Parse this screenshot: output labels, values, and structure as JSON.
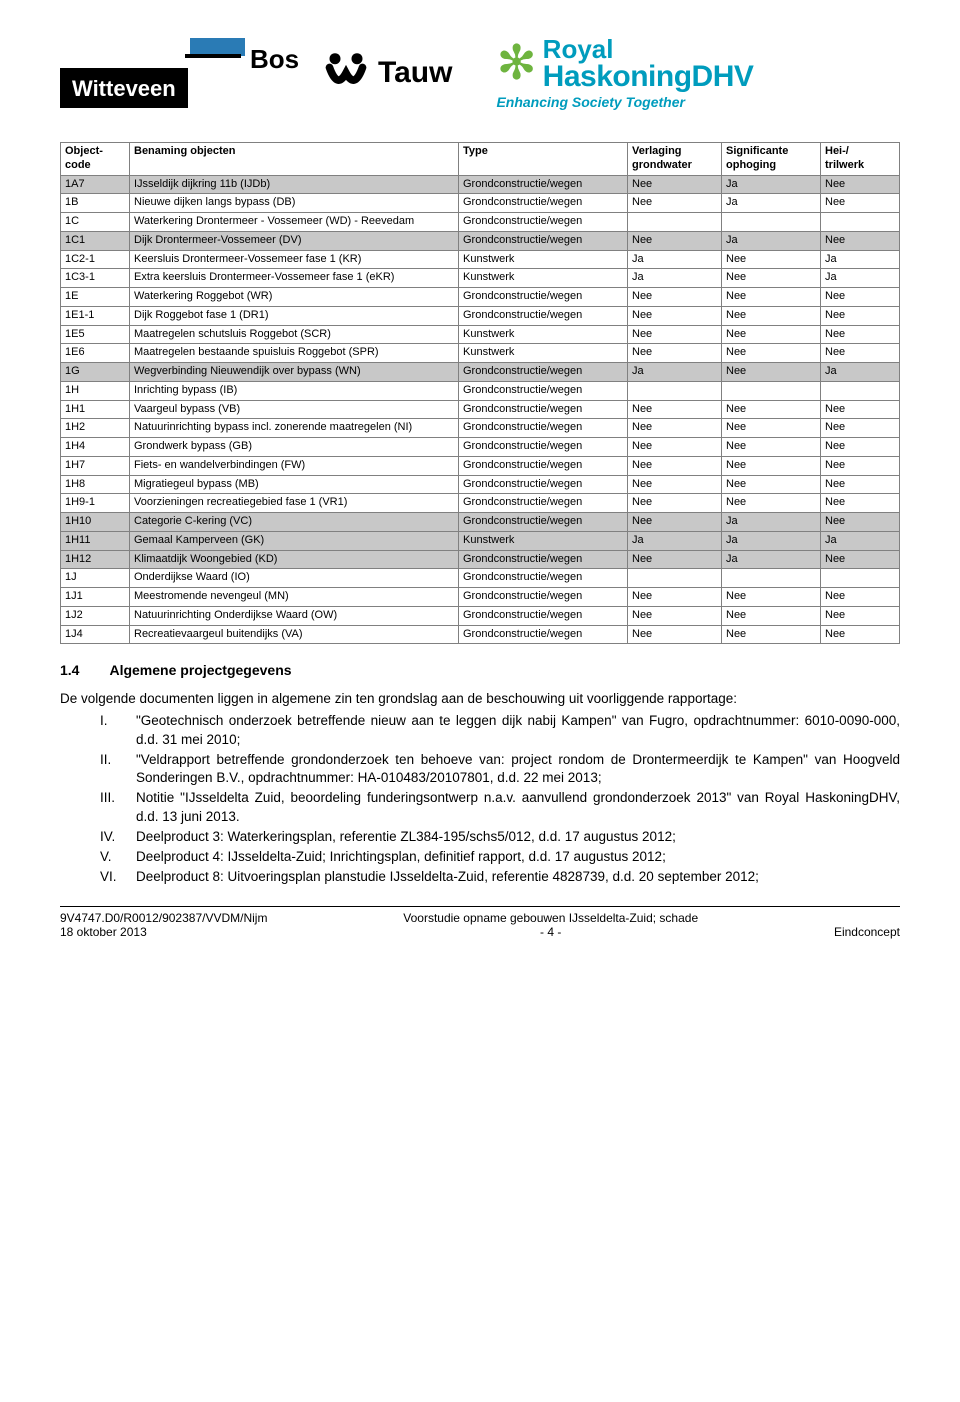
{
  "logos": {
    "wb_text1": "Witteveen",
    "wb_text2": "Bos",
    "tauw": "Tauw",
    "rh_royal": "Royal",
    "rh_hdhv": "HaskoningDHV",
    "rh_tag": "Enhancing Society Together"
  },
  "table": {
    "headers": {
      "c1a": "Object-",
      "c1b": "code",
      "c2": "Benaming objecten",
      "c3": "Type",
      "c4a": "Verlaging",
      "c4b": "grondwater",
      "c5a": "Significante",
      "c5b": "ophoging",
      "c6a": "Hei-/",
      "c6b": "trilwerk"
    },
    "rows": [
      {
        "shade": true,
        "c": "1A7",
        "n": "IJsseldijk dijkring 11b (IJDb)",
        "t": "Grondconstructie/wegen",
        "v": "Nee",
        "s": "Ja",
        "h": "Nee"
      },
      {
        "shade": false,
        "c": "1B",
        "n": "Nieuwe dijken langs bypass (DB)",
        "t": "Grondconstructie/wegen",
        "v": "Nee",
        "s": "Ja",
        "h": "Nee"
      },
      {
        "shade": false,
        "c": "1C",
        "n": "Waterkering Drontermeer - Vossemeer (WD) - Reevedam",
        "t": "Grondconstructie/wegen",
        "v": "",
        "s": "",
        "h": ""
      },
      {
        "shade": true,
        "c": "1C1",
        "n": "Dijk Drontermeer-Vossemeer (DV)",
        "t": "Grondconstructie/wegen",
        "v": "Nee",
        "s": "Ja",
        "h": "Nee"
      },
      {
        "shade": false,
        "c": "1C2-1",
        "n": "Keersluis Drontermeer-Vossemeer fase 1 (KR)",
        "t": "Kunstwerk",
        "v": "Ja",
        "s": "Nee",
        "h": "Ja"
      },
      {
        "shade": false,
        "c": "1C3-1",
        "n": "Extra keersluis Drontermeer-Vossemeer fase 1 (eKR)",
        "t": "Kunstwerk",
        "v": "Ja",
        "s": "Nee",
        "h": "Ja"
      },
      {
        "shade": false,
        "c": "1E",
        "n": "Waterkering Roggebot (WR)",
        "t": "Grondconstructie/wegen",
        "v": "Nee",
        "s": "Nee",
        "h": "Nee"
      },
      {
        "shade": false,
        "c": "1E1-1",
        "n": "Dijk Roggebot fase 1 (DR1)",
        "t": "Grondconstructie/wegen",
        "v": "Nee",
        "s": "Nee",
        "h": "Nee"
      },
      {
        "shade": false,
        "c": "1E5",
        "n": "Maatregelen schutsluis Roggebot (SCR)",
        "t": "Kunstwerk",
        "v": "Nee",
        "s": "Nee",
        "h": "Nee"
      },
      {
        "shade": false,
        "c": "1E6",
        "n": "Maatregelen bestaande spuisluis Roggebot (SPR)",
        "t": "Kunstwerk",
        "v": "Nee",
        "s": "Nee",
        "h": "Nee"
      },
      {
        "shade": true,
        "c": "1G",
        "n": "Wegverbinding Nieuwendijk over bypass (WN)",
        "t": "Grondconstructie/wegen",
        "v": "Ja",
        "s": "Nee",
        "h": "Ja"
      },
      {
        "shade": false,
        "c": "1H",
        "n": "Inrichting bypass (IB)",
        "t": "Grondconstructie/wegen",
        "v": "",
        "s": "",
        "h": ""
      },
      {
        "shade": false,
        "c": "1H1",
        "n": "Vaargeul bypass (VB)",
        "t": "Grondconstructie/wegen",
        "v": "Nee",
        "s": "Nee",
        "h": "Nee"
      },
      {
        "shade": false,
        "c": "1H2",
        "n": "Natuurinrichting bypass incl. zonerende maatregelen (NI)",
        "t": "Grondconstructie/wegen",
        "v": "Nee",
        "s": "Nee",
        "h": "Nee"
      },
      {
        "shade": false,
        "c": "1H4",
        "n": "Grondwerk bypass (GB)",
        "t": "Grondconstructie/wegen",
        "v": "Nee",
        "s": "Nee",
        "h": "Nee"
      },
      {
        "shade": false,
        "c": "1H7",
        "n": "Fiets- en wandelverbindingen (FW)",
        "t": "Grondconstructie/wegen",
        "v": "Nee",
        "s": "Nee",
        "h": "Nee"
      },
      {
        "shade": false,
        "c": "1H8",
        "n": "Migratiegeul bypass (MB)",
        "t": "Grondconstructie/wegen",
        "v": "Nee",
        "s": "Nee",
        "h": "Nee"
      },
      {
        "shade": false,
        "c": "1H9-1",
        "n": "Voorzieningen recreatiegebied fase 1 (VR1)",
        "t": "Grondconstructie/wegen",
        "v": "Nee",
        "s": "Nee",
        "h": "Nee"
      },
      {
        "shade": true,
        "c": "1H10",
        "n": "Categorie C-kering (VC)",
        "t": "Grondconstructie/wegen",
        "v": "Nee",
        "s": "Ja",
        "h": "Nee"
      },
      {
        "shade": true,
        "c": "1H11",
        "n": "Gemaal Kamperveen (GK)",
        "t": "Kunstwerk",
        "v": "Ja",
        "s": "Ja",
        "h": "Ja"
      },
      {
        "shade": true,
        "c": "1H12",
        "n": "Klimaatdijk Woongebied (KD)",
        "t": "Grondconstructie/wegen",
        "v": "Nee",
        "s": "Ja",
        "h": "Nee"
      },
      {
        "shade": false,
        "c": "1J",
        "n": "Onderdijkse Waard (IO)",
        "t": "Grondconstructie/wegen",
        "v": "",
        "s": "",
        "h": ""
      },
      {
        "shade": false,
        "c": "1J1",
        "n": "Meestromende nevengeul (MN)",
        "t": "Grondconstructie/wegen",
        "v": "Nee",
        "s": "Nee",
        "h": "Nee"
      },
      {
        "shade": false,
        "c": "1J2",
        "n": "Natuurinrichting Onderdijkse Waard (OW)",
        "t": "Grondconstructie/wegen",
        "v": "Nee",
        "s": "Nee",
        "h": "Nee"
      },
      {
        "shade": false,
        "c": "1J4",
        "n": "Recreatievaargeul buitendijks (VA)",
        "t": "Grondconstructie/wegen",
        "v": "Nee",
        "s": "Nee",
        "h": "Nee"
      }
    ]
  },
  "section": {
    "num": "1.4",
    "title": "Algemene projectgegevens"
  },
  "para1": "De volgende documenten liggen in algemene zin ten grondslag aan de beschouwing uit voorliggende rapportage:",
  "list": [
    {
      "n": "I.",
      "t": "\"Geotechnisch onderzoek betreffende nieuw aan te leggen dijk nabij Kampen\" van Fugro, opdrachtnummer: 6010-0090-000, d.d. 31 mei 2010;"
    },
    {
      "n": "II.",
      "t": "\"Veldrapport betreffende grondonderzoek ten behoeve van: project rondom de Drontermeerdijk te Kampen\" van Hoogveld Sonderingen B.V., opdrachtnummer: HA-010483/20107801, d.d. 22 mei 2013;"
    },
    {
      "n": "III.",
      "t": "Notitie \"IJsseldelta Zuid, beoordeling funderingsontwerp n.a.v. aanvullend grondonderzoek 2013\" van Royal HaskoningDHV, d.d. 13 juni 2013."
    },
    {
      "n": "IV.",
      "t": "Deelproduct 3: Waterkeringsplan, referentie ZL384-195/schs5/012, d.d. 17 augustus 2012;"
    },
    {
      "n": "V.",
      "t": "Deelproduct 4: IJsseldelta-Zuid; Inrichtingsplan, definitief rapport, d.d. 17 augustus 2012;"
    },
    {
      "n": "VI.",
      "t": "Deelproduct 8: Uitvoeringsplan planstudie IJsseldelta-Zuid, referentie 4828739, d.d. 20 september 2012;"
    }
  ],
  "footer": {
    "left1": "9V4747.D0/R0012/902387/VVDM/Nijm",
    "left2": "18 oktober 2013",
    "mid1": "Voorstudie opname gebouwen IJsseldelta-Zuid; schade",
    "mid2": "- 4 -",
    "right": "Eindconcept"
  },
  "style": {
    "shade_bg": "#c8c8c8",
    "border": "#808080",
    "accent_blue": "#2a7bb5",
    "rh_cyan": "#009cbd",
    "rh_green": "#6eb43f",
    "base_fontsize": 12,
    "table_fontsize": 11
  }
}
